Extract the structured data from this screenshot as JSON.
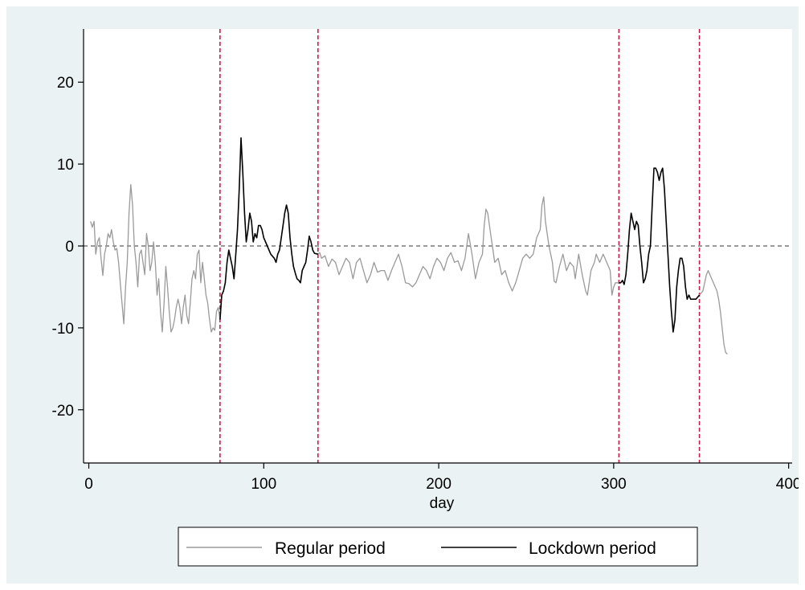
{
  "chart_data": {
    "type": "line",
    "title": "",
    "xlabel": "day",
    "ylabel": "",
    "xlim": [
      -3,
      402
    ],
    "ylim": [
      -26.5,
      26.5
    ],
    "x_ticks": [
      0,
      100,
      200,
      300,
      400
    ],
    "x_tick_labels": [
      "0",
      "100",
      "200",
      "300",
      "400"
    ],
    "y_ticks": [
      -20,
      -10,
      0,
      10,
      20
    ],
    "y_tick_labels": [
      "-20",
      "-10",
      "0",
      "10",
      "20"
    ],
    "grid": false,
    "legend_position": "bottom",
    "reference_line_y": 0,
    "reference_lines_x": [
      75,
      131,
      303,
      349
    ],
    "colors": {
      "background": "#eaf2f3",
      "plot_background": "#ffffff",
      "regular": "#9a9a9a",
      "lockdown": "#000000",
      "vertical_lines": "#cc1d46",
      "zero_line": "#333333"
    },
    "series": [
      {
        "name": "Regular period",
        "style": "gray",
        "segments": [
          [
            [
              1,
              3
            ],
            [
              2,
              2.3
            ],
            [
              3,
              3
            ],
            [
              4,
              -1
            ],
            [
              5,
              0.5
            ],
            [
              6,
              1
            ],
            [
              7,
              -1.5
            ],
            [
              8,
              -3.6
            ],
            [
              9,
              -1
            ],
            [
              10,
              0
            ],
            [
              11,
              1.5
            ],
            [
              12,
              1
            ],
            [
              13,
              2
            ],
            [
              14,
              0.5
            ],
            [
              15,
              -0.5
            ],
            [
              16,
              -0.3
            ],
            [
              17,
              -2
            ],
            [
              18,
              -4.5
            ],
            [
              19,
              -7
            ],
            [
              20,
              -9.5
            ],
            [
              21,
              -5
            ],
            [
              22,
              -2
            ],
            [
              23,
              4
            ],
            [
              24,
              7.5
            ],
            [
              25,
              5
            ],
            [
              26,
              0
            ],
            [
              27,
              -2
            ],
            [
              28,
              -5
            ],
            [
              29,
              -1
            ],
            [
              30,
              -0.5
            ],
            [
              31,
              -2
            ],
            [
              32,
              -3.5
            ],
            [
              33,
              1.5
            ],
            [
              34,
              0
            ],
            [
              35,
              -3
            ],
            [
              36,
              -2
            ],
            [
              37,
              0.5
            ],
            [
              38,
              -2
            ],
            [
              39,
              -6
            ],
            [
              40,
              -4
            ],
            [
              41,
              -8
            ],
            [
              42,
              -10.5
            ],
            [
              43,
              -7
            ],
            [
              44,
              -2.5
            ],
            [
              45,
              -5
            ],
            [
              46,
              -8
            ],
            [
              47,
              -10.5
            ],
            [
              48,
              -10
            ],
            [
              49,
              -9
            ],
            [
              50,
              -7.5
            ],
            [
              51,
              -6.5
            ],
            [
              52,
              -7.5
            ],
            [
              53,
              -9.5
            ],
            [
              54,
              -7.5
            ],
            [
              55,
              -6
            ],
            [
              56,
              -8.5
            ],
            [
              57,
              -9.5
            ],
            [
              58,
              -7
            ],
            [
              59,
              -4
            ],
            [
              60,
              -3
            ],
            [
              61,
              -4
            ],
            [
              62,
              -1
            ],
            [
              63,
              -0.5
            ],
            [
              64,
              -4.5
            ],
            [
              65,
              -2
            ],
            [
              66,
              -4
            ],
            [
              67,
              -6
            ],
            [
              68,
              -7
            ],
            [
              69,
              -9
            ],
            [
              70,
              -10.5
            ],
            [
              71,
              -10
            ],
            [
              72,
              -10.3
            ],
            [
              73,
              -8
            ],
            [
              74,
              -7.5
            ],
            [
              75,
              -9
            ]
          ],
          [
            [
              131,
              -1
            ],
            [
              132,
              -0.8
            ],
            [
              133,
              -1.5
            ],
            [
              135,
              -1.2
            ],
            [
              137,
              -2.5
            ],
            [
              139,
              -1.6
            ],
            [
              141,
              -2
            ],
            [
              143,
              -3.5
            ],
            [
              145,
              -2.5
            ],
            [
              147,
              -1.5
            ],
            [
              149,
              -2
            ],
            [
              151,
              -4
            ],
            [
              153,
              -2
            ],
            [
              155,
              -1.5
            ],
            [
              157,
              -3
            ],
            [
              159,
              -4.5
            ],
            [
              161,
              -3.5
            ],
            [
              163,
              -2
            ],
            [
              165,
              -3.2
            ],
            [
              167,
              -3
            ],
            [
              169,
              -3
            ],
            [
              171,
              -4.2
            ],
            [
              173,
              -3
            ],
            [
              175,
              -2
            ],
            [
              177,
              -1
            ],
            [
              179,
              -2.5
            ],
            [
              181,
              -4.5
            ],
            [
              183,
              -4.6
            ],
            [
              185,
              -5
            ],
            [
              187,
              -4.5
            ],
            [
              189,
              -3.5
            ],
            [
              191,
              -2.5
            ],
            [
              193,
              -3
            ],
            [
              195,
              -4
            ],
            [
              197,
              -2.5
            ],
            [
              199,
              -1.5
            ],
            [
              201,
              -2
            ],
            [
              203,
              -3
            ],
            [
              205,
              -1.5
            ],
            [
              207,
              -0.8
            ],
            [
              209,
              -2
            ],
            [
              211,
              -1.8
            ],
            [
              213,
              -3
            ],
            [
              215,
              -1.5
            ],
            [
              217,
              1.5
            ],
            [
              219,
              -1
            ],
            [
              221,
              -4
            ],
            [
              223,
              -2
            ],
            [
              225,
              -1
            ],
            [
              226,
              2.5
            ],
            [
              227,
              4.5
            ],
            [
              228,
              4
            ],
            [
              230,
              1
            ],
            [
              232,
              -2
            ],
            [
              234,
              -1.5
            ],
            [
              236,
              -3.5
            ],
            [
              238,
              -3
            ],
            [
              240,
              -4.5
            ],
            [
              242,
              -5.5
            ],
            [
              244,
              -4.5
            ],
            [
              246,
              -3
            ],
            [
              248,
              -1.5
            ],
            [
              250,
              -1
            ],
            [
              252,
              -1.5
            ],
            [
              254,
              -1
            ],
            [
              256,
              1
            ],
            [
              258,
              2
            ],
            [
              259,
              5
            ],
            [
              260,
              6
            ],
            [
              261,
              3
            ],
            [
              263,
              0
            ],
            [
              265,
              -2
            ],
            [
              266,
              -4.3
            ],
            [
              267,
              -4.5
            ],
            [
              269,
              -2.5
            ],
            [
              271,
              -1
            ],
            [
              273,
              -3
            ],
            [
              275,
              -2
            ],
            [
              277,
              -2.5
            ],
            [
              278,
              -4
            ],
            [
              280,
              -1
            ],
            [
              282,
              -3.5
            ],
            [
              284,
              -5.5
            ],
            [
              285,
              -6
            ],
            [
              287,
              -3
            ],
            [
              289,
              -2
            ],
            [
              290,
              -1
            ],
            [
              292,
              -2
            ],
            [
              294,
              -1
            ],
            [
              296,
              -2
            ],
            [
              298,
              -3
            ],
            [
              299,
              -6
            ],
            [
              300,
              -5
            ],
            [
              301,
              -4.5
            ],
            [
              302,
              -4.5
            ],
            [
              303,
              -4.5
            ]
          ],
          [
            [
              349,
              -6
            ],
            [
              351,
              -5.5
            ],
            [
              353,
              -3.5
            ],
            [
              354,
              -3
            ],
            [
              356,
              -4
            ],
            [
              357,
              -4.5
            ],
            [
              359,
              -5.5
            ],
            [
              360,
              -6.5
            ],
            [
              361,
              -8
            ],
            [
              362,
              -10
            ],
            [
              363,
              -12
            ],
            [
              364,
              -13
            ],
            [
              365,
              -13.2
            ]
          ]
        ]
      },
      {
        "name": "Lockdown period",
        "style": "black",
        "segments": [
          [
            [
              75,
              -9
            ],
            [
              76,
              -6
            ],
            [
              77,
              -5.5
            ],
            [
              78,
              -4.5
            ],
            [
              79,
              -2
            ],
            [
              80,
              -0.5
            ],
            [
              81,
              -1.5
            ],
            [
              82,
              -2.5
            ],
            [
              83,
              -4
            ],
            [
              84,
              -1
            ],
            [
              85,
              2
            ],
            [
              86,
              7
            ],
            [
              87,
              13.2
            ],
            [
              88,
              9
            ],
            [
              89,
              4
            ],
            [
              90,
              0.5
            ],
            [
              91,
              2
            ],
            [
              92,
              4
            ],
            [
              93,
              3
            ],
            [
              94,
              0.5
            ],
            [
              95,
              1.5
            ],
            [
              96,
              1
            ],
            [
              97,
              2.5
            ],
            [
              98,
              2.5
            ],
            [
              99,
              2
            ],
            [
              100,
              1
            ],
            [
              102,
              0
            ],
            [
              104,
              -1
            ],
            [
              106,
              -1.5
            ],
            [
              107,
              -2
            ],
            [
              108,
              -1
            ],
            [
              109,
              -0.5
            ],
            [
              110,
              1
            ],
            [
              111,
              2.5
            ],
            [
              112,
              4
            ],
            [
              113,
              5
            ],
            [
              114,
              4
            ],
            [
              115,
              1
            ],
            [
              116,
              -1
            ],
            [
              117,
              -2.5
            ],
            [
              118,
              -3.3
            ],
            [
              119,
              -4
            ],
            [
              120,
              -4.2
            ],
            [
              121,
              -4.5
            ],
            [
              122,
              -3
            ],
            [
              123,
              -2.5
            ],
            [
              124,
              -2
            ],
            [
              125,
              -0.5
            ],
            [
              126,
              1.2
            ],
            [
              127,
              0.5
            ],
            [
              128,
              -0.5
            ],
            [
              129,
              -0.9
            ],
            [
              131,
              -1
            ]
          ],
          [
            [
              303,
              -4.5
            ],
            [
              304,
              -4.5
            ],
            [
              305,
              -4.2
            ],
            [
              306,
              -4.7
            ],
            [
              307,
              -3.5
            ],
            [
              308,
              -1
            ],
            [
              309,
              2
            ],
            [
              310,
              4
            ],
            [
              311,
              3
            ],
            [
              312,
              2
            ],
            [
              313,
              3
            ],
            [
              314,
              2.5
            ],
            [
              315,
              0
            ],
            [
              316,
              -2
            ],
            [
              317,
              -4.5
            ],
            [
              318,
              -4
            ],
            [
              319,
              -3
            ],
            [
              320,
              -1
            ],
            [
              321,
              0
            ],
            [
              322,
              5
            ],
            [
              323,
              9.5
            ],
            [
              324,
              9.5
            ],
            [
              325,
              9
            ],
            [
              326,
              8
            ],
            [
              327,
              9
            ],
            [
              328,
              9.5
            ],
            [
              329,
              7
            ],
            [
              330,
              3
            ],
            [
              331,
              -1
            ],
            [
              332,
              -5
            ],
            [
              333,
              -8
            ],
            [
              334,
              -10.5
            ],
            [
              335,
              -9
            ],
            [
              336,
              -5
            ],
            [
              337,
              -3
            ],
            [
              338,
              -1.5
            ],
            [
              339,
              -1.5
            ],
            [
              340,
              -2.5
            ],
            [
              341,
              -5
            ],
            [
              342,
              -6.5
            ],
            [
              343,
              -6
            ],
            [
              344,
              -6.5
            ],
            [
              345,
              -6.5
            ],
            [
              346,
              -6.5
            ],
            [
              347,
              -6.5
            ],
            [
              349,
              -6
            ]
          ]
        ]
      }
    ]
  }
}
